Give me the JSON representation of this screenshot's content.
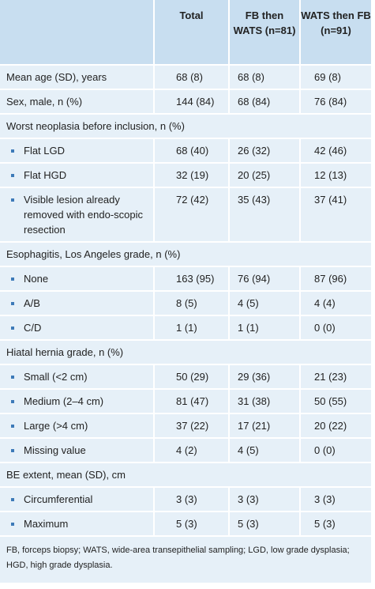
{
  "table": {
    "columns": [
      "Total",
      "FB then WATS (n=81)",
      "WATS then FB (n=91)"
    ],
    "rows": [
      {
        "label": "Mean age (SD), years",
        "values": [
          "68 (8)",
          "68 (8)",
          "69 (8)"
        ]
      },
      {
        "label": "Sex, male, n (%)",
        "values": [
          "144 (84)",
          "68 (84)",
          "76 (84)"
        ]
      },
      {
        "label": "Worst neoplasia before inclusion, n (%)",
        "items": [
          {
            "label": "Flat LGD",
            "values": [
              "68 (40)",
              "26 (32)",
              "42 (46)"
            ]
          },
          {
            "label": "Flat HGD",
            "values": [
              "32 (19)",
              "20 (25)",
              "12 (13)"
            ]
          },
          {
            "label": "Visible lesion already removed with endo-scopic resection",
            "values": [
              "72 (42)",
              "35 (43)",
              "37 (41)"
            ]
          }
        ]
      },
      {
        "label": "Esophagitis, Los Angeles grade, n (%)",
        "items": [
          {
            "label": "None",
            "values": [
              "163 (95)",
              "76 (94)",
              "87 (96)"
            ]
          },
          {
            "label": "A/B",
            "values": [
              "8 (5)",
              "4 (5)",
              "4 (4)"
            ]
          },
          {
            "label": "C/D",
            "values": [
              "1 (1)",
              "1 (1)",
              "0 (0)"
            ]
          }
        ]
      },
      {
        "label": "Hiatal hernia grade, n (%)",
        "items": [
          {
            "label": "Small (<2 cm)",
            "values": [
              "50 (29)",
              "29 (36)",
              "21 (23)"
            ]
          },
          {
            "label": "Medium (2–4 cm)",
            "values": [
              "81 (47)",
              "31 (38)",
              "50 (55)"
            ]
          },
          {
            "label": "Large (>4 cm)",
            "values": [
              "37 (22)",
              "17 (21)",
              "20 (22)"
            ]
          },
          {
            "label": "Missing value",
            "values": [
              "4 (2)",
              "4 (5)",
              "0 (0)"
            ]
          }
        ]
      },
      {
        "label": "BE extent, mean (SD), cm",
        "items": [
          {
            "label": "Circumferential",
            "values": [
              "3 (3)",
              "3 (3)",
              "3 (3)"
            ]
          },
          {
            "label": "Maximum",
            "values": [
              "5 (3)",
              "5 (3)",
              "5 (3)"
            ]
          }
        ]
      }
    ],
    "footnote": "FB, forceps biopsy; WATS, wide-area transepithelial sampling; LGD, low grade dysplasia; HGD, high grade dysplasia."
  }
}
